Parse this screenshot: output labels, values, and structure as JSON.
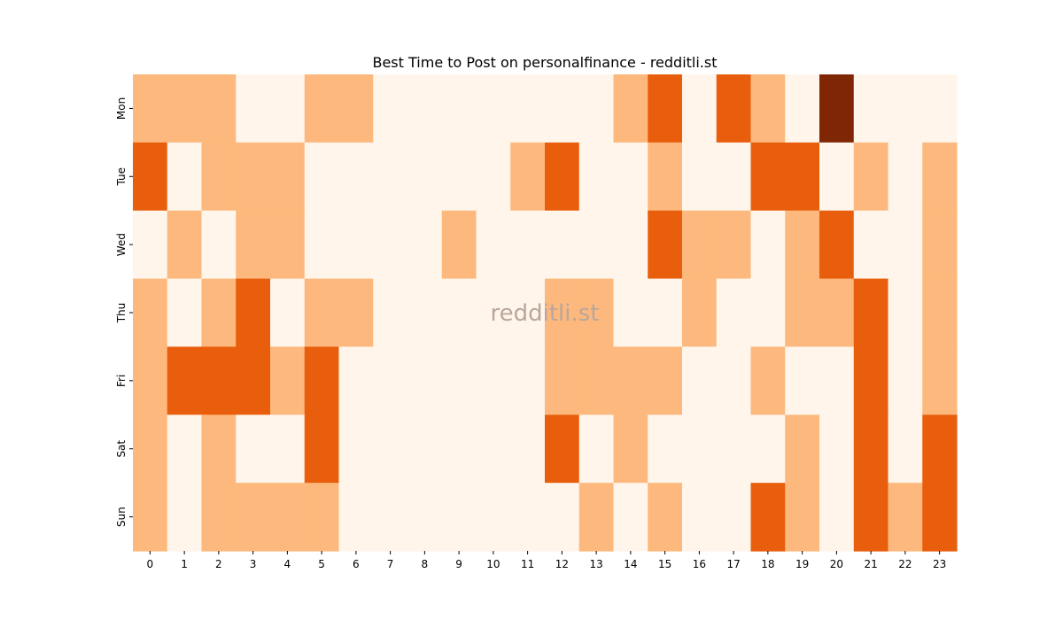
{
  "chart_data": {
    "type": "heatmap",
    "title": "Best Time to Post on personalfinance - redditli.st",
    "xlabel": "",
    "ylabel": "",
    "x_categories": [
      "0",
      "1",
      "2",
      "3",
      "4",
      "5",
      "6",
      "7",
      "8",
      "9",
      "10",
      "11",
      "12",
      "13",
      "14",
      "15",
      "16",
      "17",
      "18",
      "19",
      "20",
      "21",
      "22",
      "23"
    ],
    "y_categories": [
      "Mon",
      "Tue",
      "Wed",
      "Thu",
      "Fri",
      "Sat",
      "Sun"
    ],
    "values": [
      [
        1,
        1,
        1,
        0,
        0,
        1,
        1,
        0,
        0,
        0,
        0,
        0,
        0,
        0,
        1,
        2,
        0,
        2,
        1,
        0,
        3,
        0,
        0,
        0
      ],
      [
        2,
        0,
        1,
        1,
        1,
        0,
        0,
        0,
        0,
        0,
        0,
        1,
        2,
        0,
        0,
        1,
        0,
        0,
        2,
        2,
        0,
        1,
        0,
        1
      ],
      [
        0,
        1,
        0,
        1,
        1,
        0,
        0,
        0,
        0,
        1,
        0,
        0,
        0,
        0,
        0,
        2,
        1,
        1,
        0,
        1,
        2,
        0,
        0,
        1
      ],
      [
        1,
        0,
        1,
        2,
        0,
        1,
        1,
        0,
        0,
        0,
        0,
        0,
        1,
        1,
        0,
        0,
        1,
        0,
        0,
        1,
        1,
        2,
        0,
        1
      ],
      [
        1,
        2,
        2,
        2,
        1,
        2,
        0,
        0,
        0,
        0,
        0,
        0,
        1,
        1,
        1,
        1,
        0,
        0,
        1,
        0,
        0,
        2,
        0,
        1
      ],
      [
        1,
        0,
        1,
        0,
        0,
        2,
        0,
        0,
        0,
        0,
        0,
        0,
        2,
        0,
        1,
        0,
        0,
        0,
        0,
        1,
        0,
        2,
        0,
        2
      ],
      [
        1,
        0,
        1,
        1,
        1,
        1,
        0,
        0,
        0,
        0,
        0,
        0,
        0,
        1,
        0,
        1,
        0,
        0,
        2,
        1,
        0,
        2,
        1,
        2
      ]
    ],
    "color_scale": [
      "#fff5eb",
      "#fdb97d",
      "#e95e0d",
      "#7f2704"
    ],
    "colormap": "Oranges",
    "colorbar": false,
    "grid": false,
    "watermark": "redditli.st"
  }
}
